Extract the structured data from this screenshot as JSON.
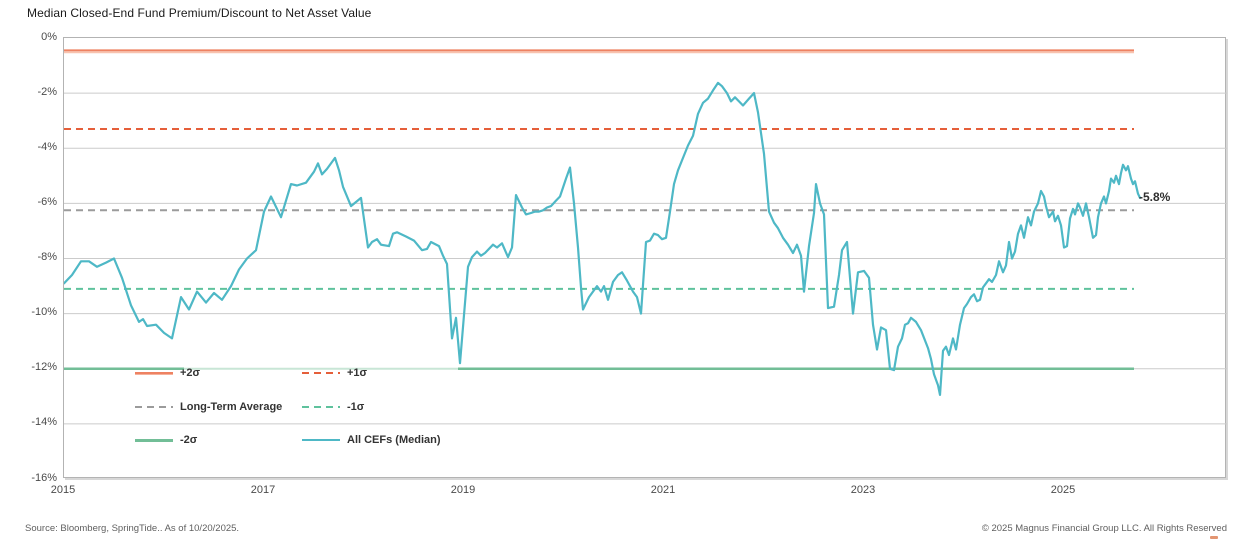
{
  "title": "Median Closed-End Fund Premium/Discount to Net Asset Value",
  "footer": {
    "source": "Source: Bloomberg, SpringTide.. As of 10/20/2025.",
    "copyright": "© 2025 Magnus Financial Group LLC. All Rights Reserved"
  },
  "chart_data": {
    "type": "line",
    "title": "Median Closed-End Fund Premium/Discount to Net Asset Value",
    "grid": true,
    "legend_position": "inside-bottom-left",
    "end_label": "-5.8%",
    "x_axis": {
      "ticks": [
        2015,
        2017,
        2019,
        2021,
        2023,
        2025
      ],
      "range": [
        2015,
        2026.63
      ]
    },
    "y_axis": {
      "unit": "%",
      "ticks": [
        "0%",
        "-2%",
        "-4%",
        "-6%",
        "-8%",
        "-10%",
        "-12%",
        "-14%",
        "-16%"
      ],
      "tick_values": [
        0,
        -2,
        -4,
        -6,
        -8,
        -10,
        -12,
        -14,
        -16
      ],
      "range": [
        -16,
        0
      ]
    },
    "reference_x_end": 2025.7,
    "reference_lines": [
      {
        "name": "+2σ",
        "value": -0.45,
        "style": "solid",
        "color": "#ee8262",
        "shadow_color": "#f8c3af"
      },
      {
        "name": "+1σ",
        "value": -3.3,
        "style": "dashed",
        "color": "#e55f3a"
      },
      {
        "name": "Long-Term Average",
        "value": -6.25,
        "style": "dashed",
        "color": "#9b9b9b"
      },
      {
        "name": "-1σ",
        "value": -9.1,
        "style": "dashed",
        "color": "#5fc29d"
      },
      {
        "name": "-2σ",
        "value": -12.0,
        "style": "solid",
        "color": "#72be97",
        "secondary_color": "#c8e6d6"
      }
    ],
    "legend": [
      {
        "label": "+2σ"
      },
      {
        "label": "+1σ"
      },
      {
        "label": "Long-Term Average"
      },
      {
        "label": "-1σ"
      },
      {
        "label": "-2σ"
      },
      {
        "label": "All CEFs (Median)"
      }
    ],
    "series": [
      {
        "name": "All CEFs (Median)",
        "color": "#4eb8c6",
        "points": [
          [
            2015.0,
            -8.9
          ],
          [
            2015.08,
            -8.6
          ],
          [
            2015.17,
            -8.1
          ],
          [
            2015.25,
            -8.1
          ],
          [
            2015.33,
            -8.3
          ],
          [
            2015.42,
            -8.15
          ],
          [
            2015.5,
            -8.0
          ],
          [
            2015.58,
            -8.7
          ],
          [
            2015.67,
            -9.7
          ],
          [
            2015.75,
            -10.3
          ],
          [
            2015.79,
            -10.2
          ],
          [
            2015.83,
            -10.45
          ],
          [
            2015.92,
            -10.4
          ],
          [
            2016.0,
            -10.7
          ],
          [
            2016.08,
            -10.9
          ],
          [
            2016.17,
            -9.4
          ],
          [
            2016.25,
            -9.85
          ],
          [
            2016.33,
            -9.2
          ],
          [
            2016.42,
            -9.6
          ],
          [
            2016.5,
            -9.25
          ],
          [
            2016.58,
            -9.5
          ],
          [
            2016.67,
            -9.0
          ],
          [
            2016.75,
            -8.4
          ],
          [
            2016.83,
            -8.0
          ],
          [
            2016.92,
            -7.7
          ],
          [
            2017.0,
            -6.3
          ],
          [
            2017.07,
            -5.75
          ],
          [
            2017.17,
            -6.5
          ],
          [
            2017.27,
            -5.3
          ],
          [
            2017.33,
            -5.35
          ],
          [
            2017.42,
            -5.25
          ],
          [
            2017.5,
            -4.85
          ],
          [
            2017.54,
            -4.55
          ],
          [
            2017.58,
            -4.95
          ],
          [
            2017.63,
            -4.75
          ],
          [
            2017.71,
            -4.35
          ],
          [
            2017.75,
            -4.8
          ],
          [
            2017.79,
            -5.4
          ],
          [
            2017.87,
            -6.1
          ],
          [
            2017.92,
            -5.95
          ],
          [
            2017.97,
            -5.8
          ],
          [
            2018.04,
            -7.6
          ],
          [
            2018.08,
            -7.4
          ],
          [
            2018.13,
            -7.3
          ],
          [
            2018.17,
            -7.5
          ],
          [
            2018.25,
            -7.55
          ],
          [
            2018.29,
            -7.1
          ],
          [
            2018.33,
            -7.05
          ],
          [
            2018.42,
            -7.2
          ],
          [
            2018.5,
            -7.35
          ],
          [
            2018.58,
            -7.7
          ],
          [
            2018.63,
            -7.65
          ],
          [
            2018.67,
            -7.4
          ],
          [
            2018.75,
            -7.55
          ],
          [
            2018.79,
            -7.9
          ],
          [
            2018.83,
            -8.2
          ],
          [
            2018.88,
            -10.9
          ],
          [
            2018.92,
            -10.15
          ],
          [
            2018.96,
            -11.8
          ],
          [
            2019.04,
            -8.3
          ],
          [
            2019.08,
            -7.95
          ],
          [
            2019.13,
            -7.75
          ],
          [
            2019.17,
            -7.9
          ],
          [
            2019.21,
            -7.8
          ],
          [
            2019.29,
            -7.5
          ],
          [
            2019.33,
            -7.6
          ],
          [
            2019.38,
            -7.45
          ],
          [
            2019.44,
            -7.95
          ],
          [
            2019.48,
            -7.6
          ],
          [
            2019.52,
            -5.7
          ],
          [
            2019.58,
            -6.15
          ],
          [
            2019.62,
            -6.4
          ],
          [
            2019.67,
            -6.35
          ],
          [
            2019.71,
            -6.3
          ],
          [
            2019.75,
            -6.3
          ],
          [
            2019.79,
            -6.25
          ],
          [
            2019.83,
            -6.15
          ],
          [
            2019.87,
            -6.1
          ],
          [
            2019.92,
            -5.9
          ],
          [
            2019.96,
            -5.75
          ],
          [
            2020.02,
            -5.1
          ],
          [
            2020.06,
            -4.7
          ],
          [
            2020.1,
            -6.0
          ],
          [
            2020.14,
            -7.6
          ],
          [
            2020.17,
            -9.05
          ],
          [
            2020.19,
            -9.85
          ],
          [
            2020.25,
            -9.4
          ],
          [
            2020.29,
            -9.2
          ],
          [
            2020.33,
            -9.0
          ],
          [
            2020.37,
            -9.2
          ],
          [
            2020.4,
            -9.0
          ],
          [
            2020.44,
            -9.5
          ],
          [
            2020.49,
            -8.85
          ],
          [
            2020.54,
            -8.6
          ],
          [
            2020.58,
            -8.5
          ],
          [
            2020.63,
            -8.8
          ],
          [
            2020.69,
            -9.2
          ],
          [
            2020.73,
            -9.4
          ],
          [
            2020.77,
            -10.0
          ],
          [
            2020.82,
            -7.4
          ],
          [
            2020.86,
            -7.35
          ],
          [
            2020.9,
            -7.1
          ],
          [
            2020.94,
            -7.15
          ],
          [
            2020.98,
            -7.3
          ],
          [
            2021.02,
            -7.25
          ],
          [
            2021.06,
            -6.3
          ],
          [
            2021.1,
            -5.3
          ],
          [
            2021.14,
            -4.8
          ],
          [
            2021.19,
            -4.35
          ],
          [
            2021.24,
            -3.9
          ],
          [
            2021.29,
            -3.55
          ],
          [
            2021.34,
            -2.75
          ],
          [
            2021.39,
            -2.35
          ],
          [
            2021.44,
            -2.2
          ],
          [
            2021.49,
            -1.9
          ],
          [
            2021.54,
            -1.63
          ],
          [
            2021.58,
            -1.75
          ],
          [
            2021.63,
            -2.0
          ],
          [
            2021.67,
            -2.3
          ],
          [
            2021.71,
            -2.15
          ],
          [
            2021.75,
            -2.3
          ],
          [
            2021.79,
            -2.45
          ],
          [
            2021.85,
            -2.2
          ],
          [
            2021.9,
            -2.0
          ],
          [
            2021.94,
            -2.7
          ],
          [
            2022.0,
            -4.2
          ],
          [
            2022.05,
            -6.3
          ],
          [
            2022.1,
            -6.7
          ],
          [
            2022.14,
            -6.9
          ],
          [
            2022.19,
            -7.25
          ],
          [
            2022.24,
            -7.5
          ],
          [
            2022.29,
            -7.8
          ],
          [
            2022.33,
            -7.5
          ],
          [
            2022.37,
            -7.9
          ],
          [
            2022.4,
            -9.2
          ],
          [
            2022.45,
            -7.55
          ],
          [
            2022.5,
            -6.35
          ],
          [
            2022.52,
            -5.3
          ],
          [
            2022.56,
            -6.0
          ],
          [
            2022.6,
            -6.4
          ],
          [
            2022.64,
            -9.8
          ],
          [
            2022.7,
            -9.75
          ],
          [
            2022.75,
            -8.6
          ],
          [
            2022.78,
            -7.7
          ],
          [
            2022.83,
            -7.4
          ],
          [
            2022.89,
            -10.0
          ],
          [
            2022.94,
            -8.5
          ],
          [
            2023.0,
            -8.45
          ],
          [
            2023.05,
            -8.7
          ],
          [
            2023.09,
            -10.4
          ],
          [
            2023.13,
            -11.3
          ],
          [
            2023.17,
            -10.5
          ],
          [
            2023.22,
            -10.6
          ],
          [
            2023.26,
            -12.0
          ],
          [
            2023.3,
            -12.05
          ],
          [
            2023.34,
            -11.2
          ],
          [
            2023.38,
            -10.9
          ],
          [
            2023.41,
            -10.4
          ],
          [
            2023.44,
            -10.35
          ],
          [
            2023.47,
            -10.15
          ],
          [
            2023.52,
            -10.3
          ],
          [
            2023.57,
            -10.6
          ],
          [
            2023.64,
            -11.25
          ],
          [
            2023.67,
            -11.65
          ],
          [
            2023.7,
            -12.2
          ],
          [
            2023.74,
            -12.6
          ],
          [
            2023.76,
            -12.95
          ],
          [
            2023.79,
            -11.35
          ],
          [
            2023.82,
            -11.2
          ],
          [
            2023.85,
            -11.5
          ],
          [
            2023.89,
            -10.9
          ],
          [
            2023.92,
            -11.3
          ],
          [
            2023.96,
            -10.4
          ],
          [
            2024.0,
            -9.8
          ],
          [
            2024.03,
            -9.65
          ],
          [
            2024.07,
            -9.4
          ],
          [
            2024.1,
            -9.3
          ],
          [
            2024.13,
            -9.55
          ],
          [
            2024.16,
            -9.5
          ],
          [
            2024.19,
            -9.05
          ],
          [
            2024.22,
            -8.9
          ],
          [
            2024.25,
            -8.75
          ],
          [
            2024.28,
            -8.85
          ],
          [
            2024.32,
            -8.6
          ],
          [
            2024.35,
            -8.1
          ],
          [
            2024.39,
            -8.5
          ],
          [
            2024.42,
            -8.25
          ],
          [
            2024.45,
            -7.4
          ],
          [
            2024.48,
            -8.0
          ],
          [
            2024.51,
            -7.75
          ],
          [
            2024.54,
            -7.1
          ],
          [
            2024.57,
            -6.8
          ],
          [
            2024.6,
            -7.25
          ],
          [
            2024.64,
            -6.5
          ],
          [
            2024.67,
            -6.8
          ],
          [
            2024.7,
            -6.3
          ],
          [
            2024.74,
            -6.0
          ],
          [
            2024.77,
            -5.55
          ],
          [
            2024.8,
            -5.75
          ],
          [
            2024.82,
            -6.1
          ],
          [
            2024.85,
            -6.5
          ],
          [
            2024.89,
            -6.3
          ],
          [
            2024.91,
            -6.65
          ],
          [
            2024.94,
            -6.45
          ],
          [
            2024.97,
            -6.8
          ],
          [
            2025.0,
            -7.6
          ],
          [
            2025.03,
            -7.55
          ],
          [
            2025.06,
            -6.55
          ],
          [
            2025.09,
            -6.2
          ],
          [
            2025.11,
            -6.4
          ],
          [
            2025.14,
            -6.0
          ],
          [
            2025.16,
            -6.15
          ],
          [
            2025.19,
            -6.45
          ],
          [
            2025.22,
            -6.0
          ],
          [
            2025.25,
            -6.5
          ],
          [
            2025.29,
            -7.25
          ],
          [
            2025.32,
            -7.15
          ],
          [
            2025.34,
            -6.5
          ],
          [
            2025.37,
            -6.0
          ],
          [
            2025.4,
            -5.75
          ],
          [
            2025.42,
            -6.0
          ],
          [
            2025.45,
            -5.55
          ],
          [
            2025.47,
            -5.1
          ],
          [
            2025.5,
            -5.25
          ],
          [
            2025.52,
            -5.0
          ],
          [
            2025.55,
            -5.3
          ],
          [
            2025.57,
            -4.9
          ],
          [
            2025.59,
            -4.6
          ],
          [
            2025.62,
            -4.8
          ],
          [
            2025.64,
            -4.65
          ],
          [
            2025.67,
            -5.1
          ],
          [
            2025.69,
            -5.3
          ],
          [
            2025.71,
            -5.2
          ],
          [
            2025.74,
            -5.65
          ],
          [
            2025.76,
            -5.8
          ]
        ]
      }
    ]
  }
}
